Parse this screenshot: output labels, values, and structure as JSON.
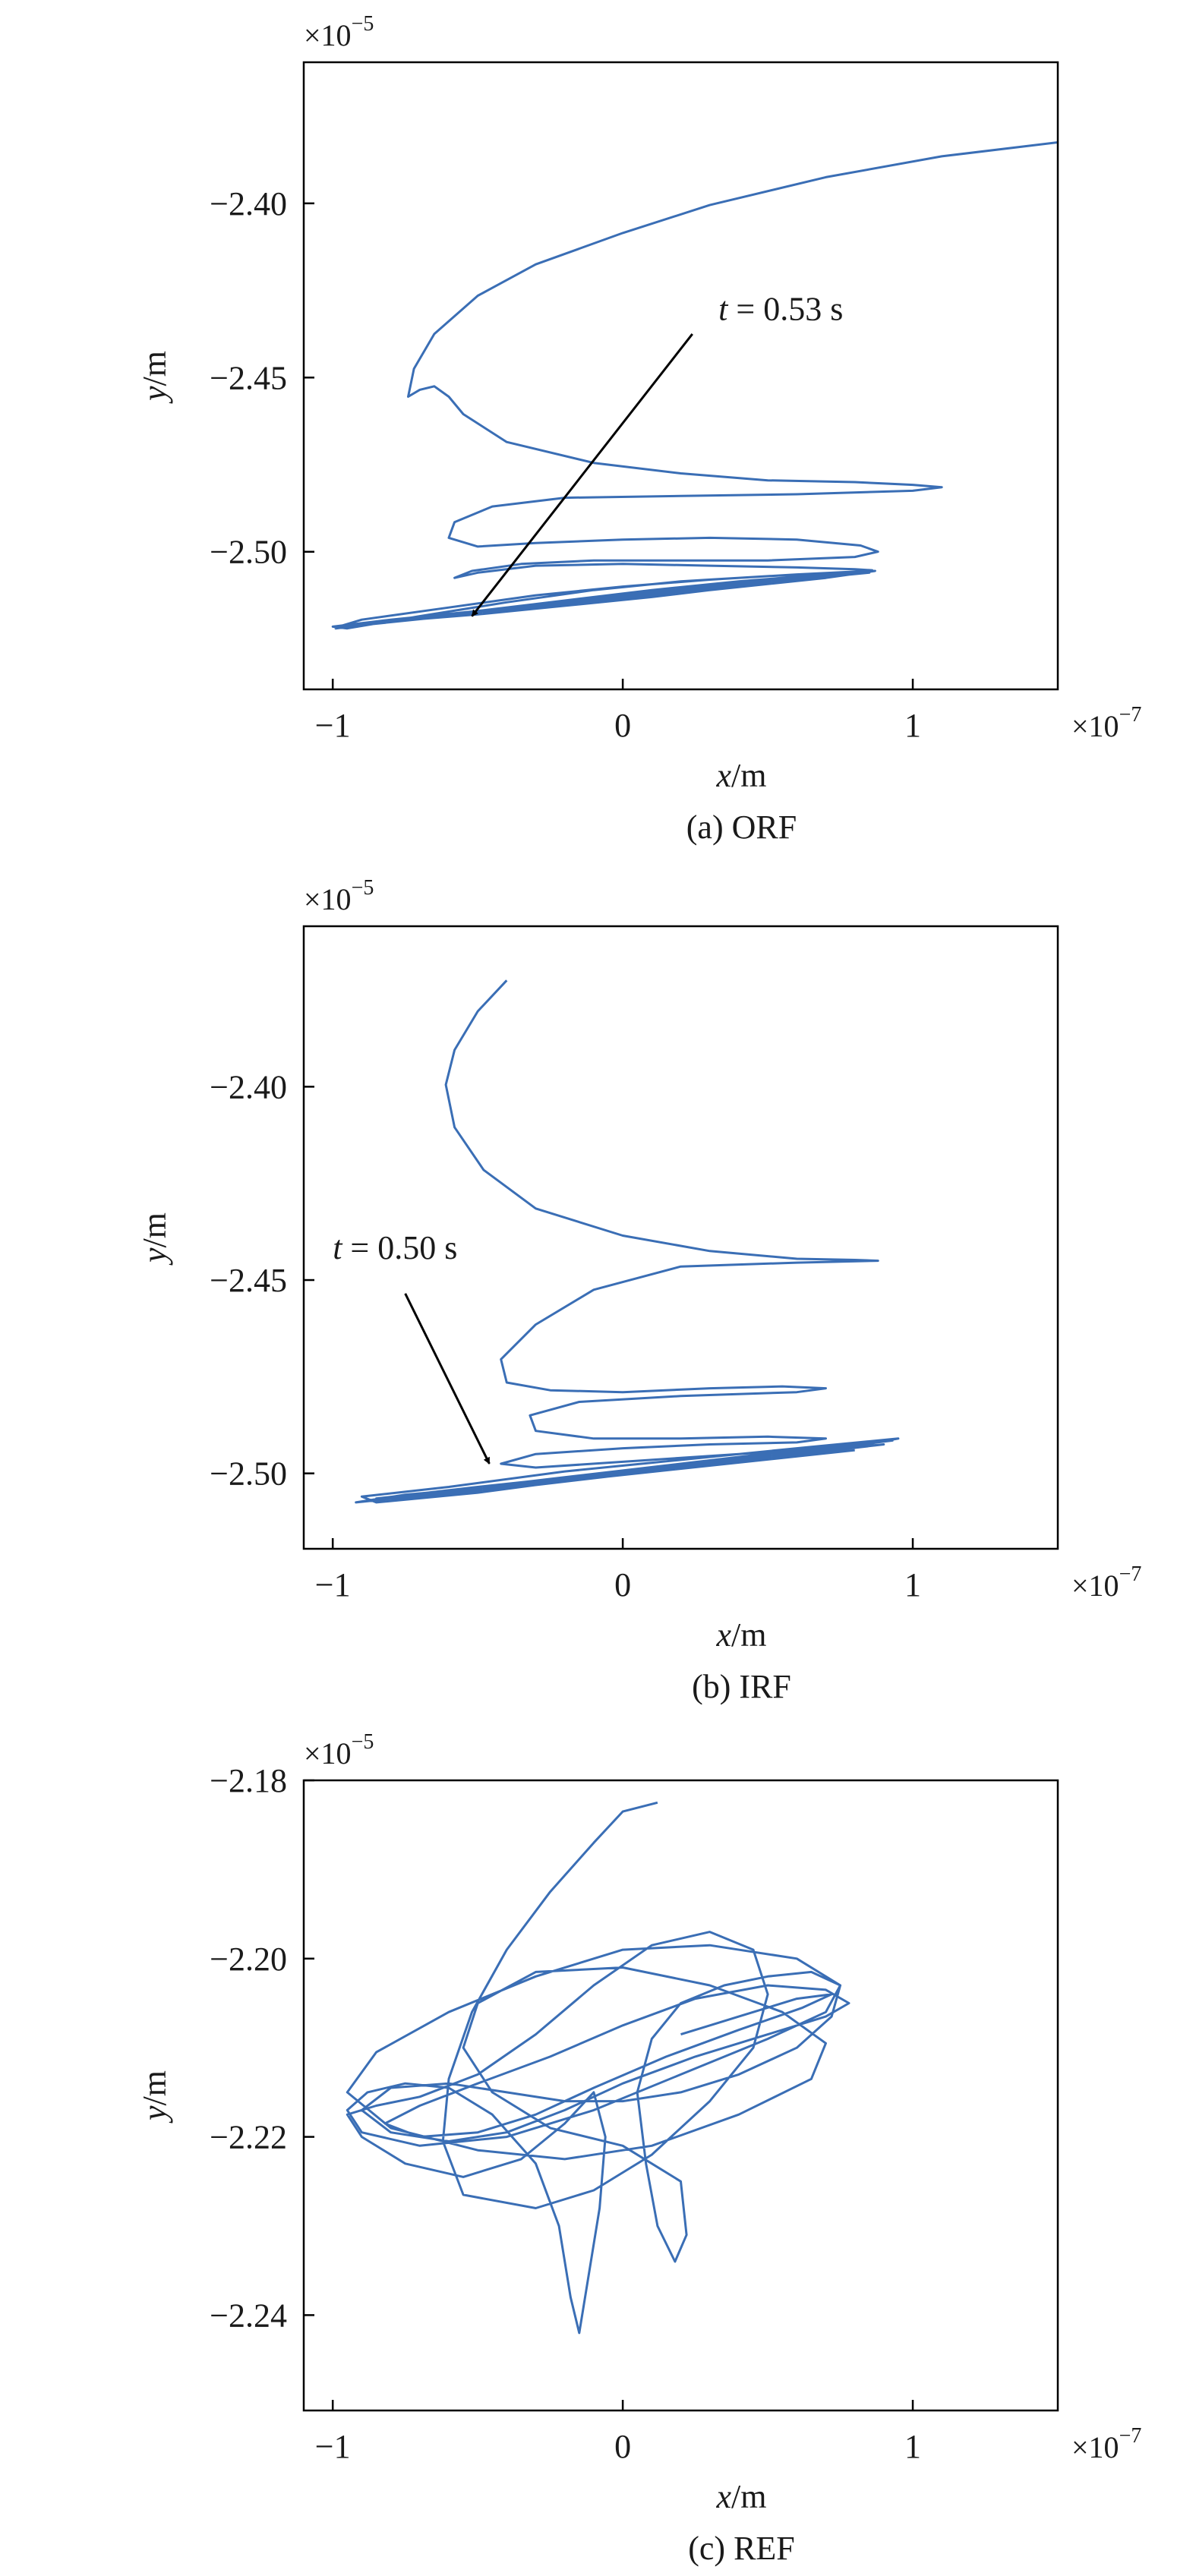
{
  "chart_data": [
    {
      "type": "line",
      "caption": "(a) ORF",
      "xlabel_var": "x",
      "xlabel_unit": "/m",
      "ylabel_var": "y",
      "ylabel_unit": "/m",
      "x_multiplier_base": "×10",
      "x_multiplier_exp": "−7",
      "y_multiplier_base": "×10",
      "y_multiplier_exp": "−5",
      "x_ticks": [
        -1,
        0,
        1
      ],
      "x_tick_labels": [
        "−1",
        "0",
        "1"
      ],
      "y_ticks": [
        -2.4,
        -2.45,
        -2.5
      ],
      "y_tick_labels": [
        "−2.40",
        "−2.45",
        "−2.50"
      ],
      "xlim": [
        -1.1,
        1.5
      ],
      "ylim": [
        -2.5395,
        -2.3595
      ],
      "line_color": "#3a6eb5",
      "annotation": {
        "var": "t",
        "text": " = 0.53 s",
        "text_at": [
          0.33,
          -2.4335
        ],
        "arrow_from": [
          0.24,
          -2.4375
        ],
        "arrow_to": [
          -0.52,
          -2.5185
        ]
      },
      "series": [
        {
          "x": [
            1.5,
            1.1,
            0.7,
            0.3,
            0.0,
            -0.3,
            -0.5,
            -0.65,
            -0.72,
            -0.74,
            -0.7,
            -0.65,
            -0.6,
            -0.55,
            -0.4,
            -0.1,
            0.2,
            0.5,
            0.8,
            1.0,
            1.1,
            1.0,
            0.6,
            0.2,
            -0.2,
            -0.45,
            -0.58,
            -0.6,
            -0.5,
            -0.3,
            0.0,
            0.3,
            0.6,
            0.82,
            0.88,
            0.8,
            0.5,
            0.2,
            -0.1,
            -0.35,
            -0.52,
            -0.58,
            -0.5,
            -0.3,
            0.0,
            0.3,
            0.6,
            0.8,
            0.86,
            0.7,
            0.4,
            0.1,
            -0.2,
            -0.5,
            -0.8,
            -1.0,
            -0.95,
            -0.7,
            -0.4,
            -0.1,
            0.2,
            0.5,
            0.75,
            0.87,
            0.7,
            0.4,
            0.1,
            -0.2,
            -0.5,
            -0.8,
            -0.98,
            -0.9,
            -0.6,
            -0.3,
            0.0,
            0.3,
            0.6,
            0.85,
            0.7,
            0.3,
            -0.1,
            -0.5,
            -0.85,
            -0.97,
            -0.7,
            -0.3,
            0.1,
            0.5,
            0.85,
            0.6,
            0.2,
            -0.2,
            -0.6,
            -0.95,
            -0.8,
            -0.4,
            0.0,
            0.4,
            0.8,
            0.5,
            0.1,
            -0.3,
            -0.7,
            -0.99,
            -0.75,
            -0.35,
            0.05,
            0.45,
            0.86
          ],
          "y": [
            -2.3825,
            -2.3865,
            -2.3925,
            -2.4005,
            -2.4085,
            -2.4175,
            -2.4265,
            -2.4375,
            -2.4475,
            -2.4555,
            -2.4535,
            -2.4525,
            -2.4555,
            -2.4605,
            -2.4685,
            -2.4745,
            -2.4775,
            -2.4795,
            -2.48,
            -2.4808,
            -2.4815,
            -2.4825,
            -2.4835,
            -2.484,
            -2.4845,
            -2.487,
            -2.4915,
            -2.496,
            -2.4985,
            -2.4975,
            -2.4965,
            -2.496,
            -2.4965,
            -2.4982,
            -2.5,
            -2.5015,
            -2.5025,
            -2.5025,
            -2.5025,
            -2.5035,
            -2.5055,
            -2.5075,
            -2.506,
            -2.504,
            -2.5035,
            -2.504,
            -2.5045,
            -2.505,
            -2.5053,
            -2.5065,
            -2.5085,
            -2.511,
            -2.514,
            -2.517,
            -2.5195,
            -2.5215,
            -2.522,
            -2.5185,
            -2.5145,
            -2.511,
            -2.5085,
            -2.507,
            -2.506,
            -2.5055,
            -2.5075,
            -2.51,
            -2.513,
            -2.5155,
            -2.518,
            -2.52,
            -2.5215,
            -2.5195,
            -2.516,
            -2.5125,
            -2.51,
            -2.508,
            -2.5065,
            -2.5055,
            -2.5075,
            -2.511,
            -2.5145,
            -2.5175,
            -2.5205,
            -2.5215,
            -2.519,
            -2.515,
            -2.5115,
            -2.5085,
            -2.506,
            -2.508,
            -2.5115,
            -2.515,
            -2.5185,
            -2.5215,
            -2.52,
            -2.5165,
            -2.5125,
            -2.509,
            -2.506,
            -2.5085,
            -2.512,
            -2.5155,
            -2.519,
            -2.522,
            -2.5195,
            -2.516,
            -2.512,
            -2.5085,
            -2.5055
          ]
        }
      ]
    },
    {
      "type": "line",
      "caption": "(b) IRF",
      "xlabel_var": "x",
      "xlabel_unit": "/m",
      "ylabel_var": "y",
      "ylabel_unit": "/m",
      "x_multiplier_base": "×10",
      "x_multiplier_exp": "−7",
      "y_multiplier_base": "×10",
      "y_multiplier_exp": "−5",
      "x_ticks": [
        -1,
        0,
        1
      ],
      "x_tick_labels": [
        "−1",
        "0",
        "1"
      ],
      "y_ticks": [
        -2.4,
        -2.45,
        -2.5
      ],
      "y_tick_labels": [
        "−2.40",
        "−2.45",
        "−2.50"
      ],
      "xlim": [
        -1.1,
        1.5
      ],
      "ylim": [
        -2.5195,
        -2.3585
      ],
      "line_color": "#3a6eb5",
      "annotation": {
        "var": "t",
        "text": " = 0.50 s",
        "text_at": [
          -1.0,
          -2.4445
        ],
        "arrow_from": [
          -0.75,
          -2.4535
        ],
        "arrow_to": [
          -0.46,
          -2.4975
        ]
      },
      "series": [
        {
          "x": [
            -0.4,
            -0.5,
            -0.58,
            -0.61,
            -0.58,
            -0.48,
            -0.3,
            0.0,
            0.3,
            0.6,
            0.8,
            0.88,
            0.6,
            0.2,
            -0.1,
            -0.3,
            -0.42,
            -0.4,
            -0.25,
            0.0,
            0.3,
            0.55,
            0.7,
            0.6,
            0.2,
            -0.15,
            -0.32,
            -0.3,
            -0.1,
            0.2,
            0.5,
            0.7,
            0.6,
            0.3,
            0.0,
            -0.3,
            -0.42,
            -0.3,
            0.0,
            0.4,
            0.8,
            0.95,
            0.6,
            0.2,
            -0.2,
            -0.6,
            -0.9,
            -0.85,
            -0.5,
            -0.1,
            0.3,
            0.7,
            0.92,
            0.6,
            0.2,
            -0.2,
            -0.6,
            -0.88,
            -0.7,
            -0.3,
            0.1,
            0.5,
            0.9,
            0.6,
            0.2,
            -0.3,
            -0.75,
            -0.92,
            -0.6,
            -0.2,
            0.2,
            0.6,
            0.93,
            0.5,
            0.0,
            -0.5,
            -0.85,
            -0.7,
            -0.2,
            0.3,
            0.8
          ],
          "y": [
            -2.3725,
            -2.3805,
            -2.3905,
            -2.3995,
            -2.4105,
            -2.4215,
            -2.4315,
            -2.4385,
            -2.4425,
            -2.4445,
            -2.4448,
            -2.445,
            -2.4455,
            -2.4465,
            -2.4525,
            -2.4615,
            -2.4705,
            -2.4765,
            -2.4785,
            -2.479,
            -2.478,
            -2.4775,
            -2.478,
            -2.479,
            -2.48,
            -2.4815,
            -2.485,
            -2.489,
            -2.491,
            -2.491,
            -2.4905,
            -2.491,
            -2.492,
            -2.4925,
            -2.4935,
            -2.495,
            -2.4975,
            -2.4985,
            -2.497,
            -2.495,
            -2.493,
            -2.491,
            -2.4935,
            -2.4965,
            -2.4995,
            -2.5035,
            -2.506,
            -2.5075,
            -2.505,
            -2.501,
            -2.4975,
            -2.494,
            -2.4915,
            -2.494,
            -2.4975,
            -2.501,
            -2.5045,
            -2.507,
            -2.506,
            -2.503,
            -2.4995,
            -2.496,
            -2.4925,
            -2.4945,
            -2.4985,
            -2.5025,
            -2.5055,
            -2.5075,
            -2.505,
            -2.5015,
            -2.498,
            -2.4945,
            -2.4915,
            -2.495,
            -2.4995,
            -2.5035,
            -2.5065,
            -2.5055,
            -2.502,
            -2.498,
            -2.494
          ]
        }
      ]
    },
    {
      "type": "line",
      "caption": "(c) REF",
      "xlabel_var": "x",
      "xlabel_unit": "/m",
      "ylabel_var": "y",
      "ylabel_unit": "/m",
      "x_multiplier_base": "×10",
      "x_multiplier_exp": "−7",
      "y_multiplier_base": "×10",
      "y_multiplier_exp": "−5",
      "x_ticks": [
        -1,
        0,
        1
      ],
      "x_tick_labels": [
        "−1",
        "0",
        "1"
      ],
      "y_ticks": [
        -2.18,
        -2.2,
        -2.22,
        -2.24
      ],
      "y_tick_labels": [
        "−2.18",
        "−2.20",
        "−2.22",
        "−2.24"
      ],
      "xlim": [
        -1.1,
        1.5
      ],
      "ylim": [
        -2.2507,
        -2.18
      ],
      "line_color": "#3a6eb5",
      "annotation": null,
      "series": [
        {
          "x": [
            0.12,
            0.0,
            -0.1,
            -0.25,
            -0.4,
            -0.52,
            -0.6,
            -0.62,
            -0.55,
            -0.3,
            -0.1,
            0.1,
            0.3,
            0.45,
            0.5,
            0.45,
            0.3,
            0.1,
            -0.1,
            -0.3,
            -0.5,
            -0.7,
            -0.85,
            -0.95,
            -0.9,
            -0.75,
            -0.55,
            -0.35,
            -0.2,
            -0.1,
            -0.06,
            -0.08,
            -0.12,
            -0.15,
            -0.18,
            -0.22,
            -0.3,
            -0.45,
            -0.6,
            -0.75,
            -0.88,
            -0.95,
            -0.9,
            -0.7,
            -0.4,
            -0.1,
            0.2,
            0.5,
            0.7,
            0.75,
            0.6,
            0.3,
            0.0,
            -0.3,
            -0.6,
            -0.85,
            -0.95,
            -0.8,
            -0.5,
            -0.2,
            0.1,
            0.4,
            0.65,
            0.7,
            0.55,
            0.3,
            0.0,
            -0.3,
            -0.5,
            -0.55,
            -0.45,
            -0.25,
            0.0,
            0.2,
            0.22,
            0.18,
            0.12,
            0.08,
            0.05,
            0.1,
            0.2,
            0.35,
            0.5,
            0.65,
            0.75,
            0.72,
            0.6,
            0.4,
            0.2,
            0.0,
            -0.2,
            -0.4,
            -0.6,
            -0.8,
            -0.9,
            -0.8,
            -0.6,
            -0.4,
            -0.2,
            0.0,
            0.25,
            0.5,
            0.7,
            0.78,
            0.7,
            0.5,
            0.25,
            0.0,
            -0.25,
            -0.5,
            -0.7,
            -0.82,
            -0.7,
            -0.5,
            -0.3,
            -0.1,
            0.15,
            0.4,
            0.62,
            0.72,
            0.6,
            0.4,
            0.2
          ],
          "y": [
            -2.1825,
            -2.1835,
            -2.187,
            -2.1925,
            -2.199,
            -2.206,
            -2.2135,
            -2.2205,
            -2.2265,
            -2.228,
            -2.226,
            -2.222,
            -2.216,
            -2.21,
            -2.204,
            -2.199,
            -2.197,
            -2.1985,
            -2.203,
            -2.2085,
            -2.213,
            -2.2155,
            -2.2165,
            -2.2175,
            -2.22,
            -2.223,
            -2.2245,
            -2.2225,
            -2.2185,
            -2.215,
            -2.22,
            -2.228,
            -2.236,
            -2.242,
            -2.238,
            -2.23,
            -2.223,
            -2.2175,
            -2.2145,
            -2.214,
            -2.215,
            -2.217,
            -2.2195,
            -2.221,
            -2.22,
            -2.217,
            -2.213,
            -2.209,
            -2.206,
            -2.203,
            -2.2,
            -2.1985,
            -2.199,
            -2.202,
            -2.206,
            -2.2105,
            -2.215,
            -2.219,
            -2.2215,
            -2.2225,
            -2.221,
            -2.2175,
            -2.2135,
            -2.2095,
            -2.206,
            -2.203,
            -2.201,
            -2.2015,
            -2.205,
            -2.21,
            -2.215,
            -2.219,
            -2.221,
            -2.225,
            -2.231,
            -2.234,
            -2.23,
            -2.223,
            -2.215,
            -2.209,
            -2.205,
            -2.203,
            -2.202,
            -2.2015,
            -2.203,
            -2.2065,
            -2.21,
            -2.213,
            -2.215,
            -2.216,
            -2.216,
            -2.215,
            -2.214,
            -2.2145,
            -2.217,
            -2.2195,
            -2.2205,
            -2.2195,
            -2.217,
            -2.214,
            -2.211,
            -2.2085,
            -2.2065,
            -2.205,
            -2.2035,
            -2.203,
            -2.2045,
            -2.2075,
            -2.211,
            -2.214,
            -2.2165,
            -2.2185,
            -2.22,
            -2.2195,
            -2.2175,
            -2.2145,
            -2.211,
            -2.208,
            -2.2055,
            -2.204,
            -2.2045,
            -2.2065,
            -2.2085
          ]
        }
      ]
    }
  ]
}
